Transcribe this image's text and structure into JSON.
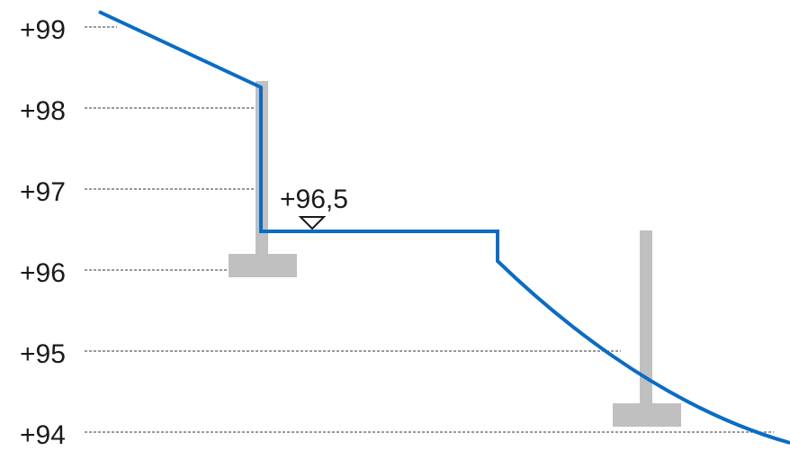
{
  "levels": [
    {
      "label": "+99"
    },
    {
      "label": "+98"
    },
    {
      "label": "+97"
    },
    {
      "label": "+96"
    },
    {
      "label": "+95"
    },
    {
      "label": "+94"
    }
  ],
  "water_level": {
    "label": "+96,5",
    "value": 96.5
  },
  "colors": {
    "terrain": "#0a6cc4",
    "walls": "#c0c0c0",
    "gridlines": "#333333"
  }
}
